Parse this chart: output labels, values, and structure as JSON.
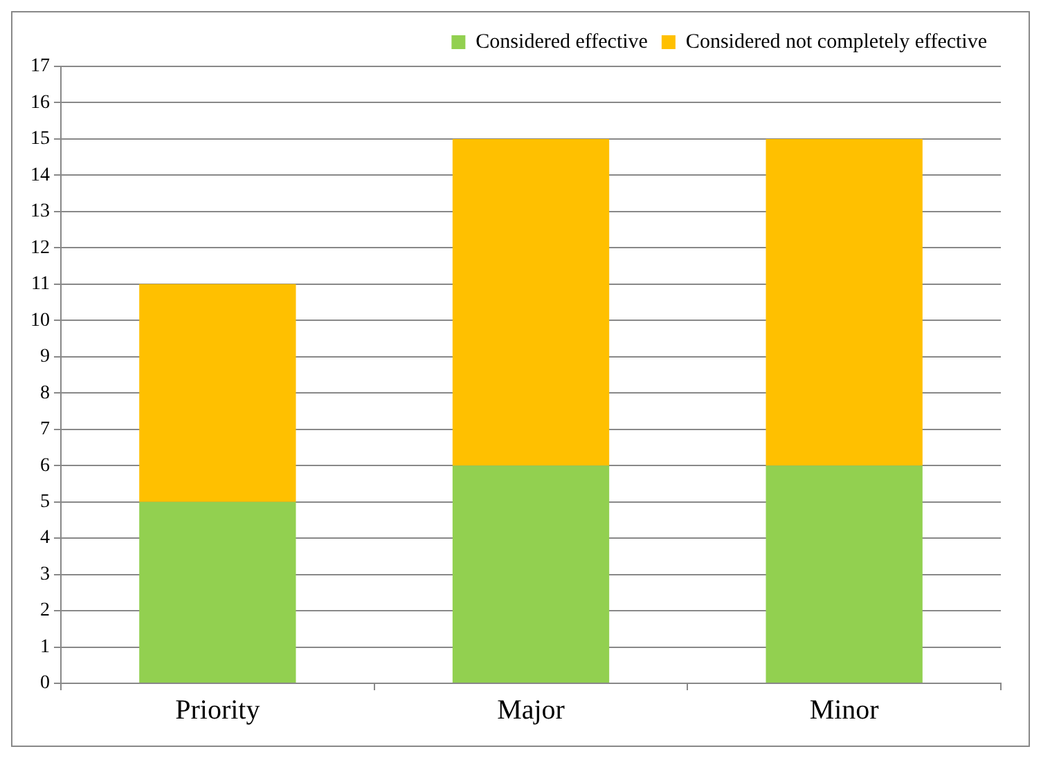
{
  "chart_data": {
    "type": "bar",
    "categories": [
      "Priority",
      "Major",
      "Minor"
    ],
    "stacked": true,
    "series": [
      {
        "name": "Considered effective",
        "color": "#92d050",
        "values": [
          5,
          6,
          6
        ]
      },
      {
        "name": "Considered not completely effective",
        "color": "#ffc000",
        "values": [
          6,
          9,
          9
        ]
      }
    ],
    "ylim": [
      0,
      17
    ],
    "yticks": [
      0,
      1,
      2,
      3,
      4,
      5,
      6,
      7,
      8,
      9,
      10,
      11,
      12,
      13,
      14,
      15,
      16,
      17
    ],
    "grid": "y",
    "legend": "top right"
  }
}
